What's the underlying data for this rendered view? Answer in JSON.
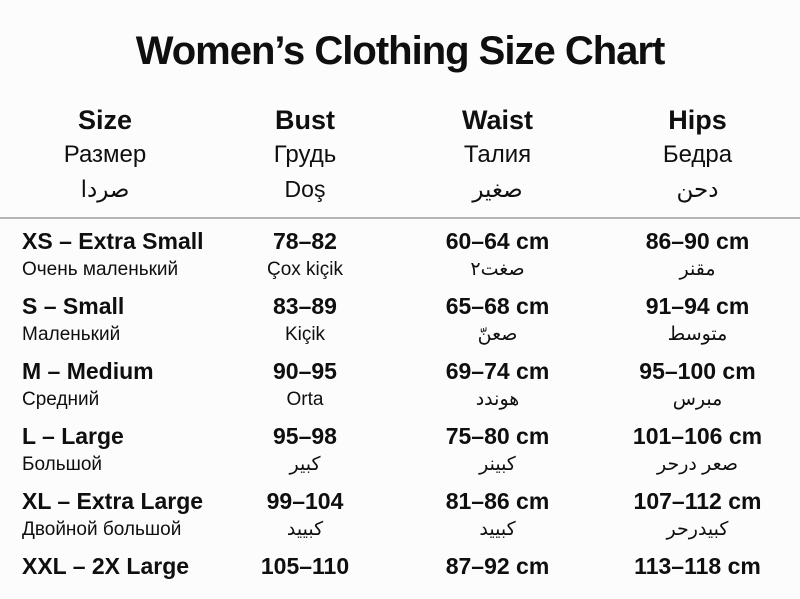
{
  "title": "Women’s Clothing Size Chart",
  "colors": {
    "background": "#fcfcfc",
    "text": "#0f0f0f",
    "divider": "#b5b5b5"
  },
  "table": {
    "columns": [
      {
        "en": "Size",
        "ru": "Размер",
        "third": "صردا"
      },
      {
        "en": "Bust",
        "ru": "Грудь",
        "third": "Doş"
      },
      {
        "en": "Waist",
        "ru": "Талия",
        "third": "صغير"
      },
      {
        "en": "Hips",
        "ru": "Бедра",
        "third": "دحن"
      }
    ],
    "rows": [
      {
        "size": "XS – Extra Small",
        "size_sub": "Очень маленький",
        "bust": "78–82",
        "bust_sub": "Çox kiçik",
        "waist": "60–64 cm",
        "waist_sub": "صغت٢",
        "hips": "86–90 cm",
        "hips_sub": "مقنر"
      },
      {
        "size": "S – Small",
        "size_sub": "Маленький",
        "bust": "83–89",
        "bust_sub": "Kiçik",
        "waist": "65–68 cm",
        "waist_sub": "صعنّ",
        "hips": "91–94 cm",
        "hips_sub": "متوسط"
      },
      {
        "size": "M – Medium",
        "size_sub": "Средний",
        "bust": "90–95",
        "bust_sub": "Orta",
        "waist": "69–74 cm",
        "waist_sub": "هوندد",
        "hips": "95–100 cm",
        "hips_sub": "مبرس"
      },
      {
        "size": "L – Large",
        "size_sub": "Большой",
        "bust": "95–98",
        "bust_sub": "كبير",
        "waist": "75–80 cm",
        "waist_sub": "كبينر",
        "hips": "101–106 cm",
        "hips_sub": "صعر درحر"
      },
      {
        "size": "XL – Extra Large",
        "size_sub": "Двойной большой",
        "bust": "99–104",
        "bust_sub": "كبييد",
        "waist": "81–86 cm",
        "waist_sub": "كبييد",
        "hips": "107–112 cm",
        "hips_sub": "كبيدرحر"
      },
      {
        "size": "XXL – 2X Large",
        "size_sub": "",
        "bust": "105–110",
        "bust_sub": "",
        "waist": "87–92 cm",
        "waist_sub": "",
        "hips": "113–118 cm",
        "hips_sub": ""
      }
    ]
  }
}
